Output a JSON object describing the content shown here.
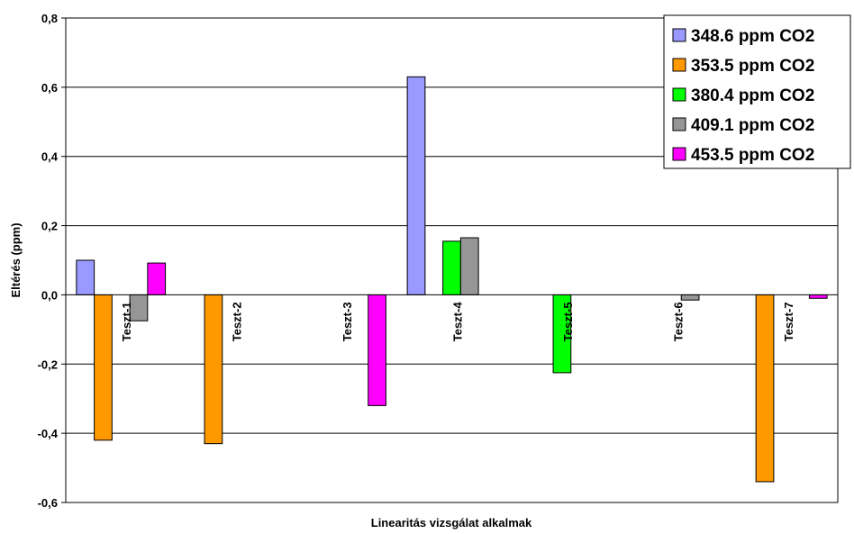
{
  "chart_data": {
    "type": "bar",
    "title": "",
    "xlabel": "Linearitás vizsgálat alkalmak",
    "ylabel": "Eltérés (ppm)",
    "ylim": [
      -0.6,
      0.8
    ],
    "yticks": [
      "0,8",
      "0,6",
      "0,4",
      "0,2",
      "0,0",
      "-0,2",
      "-0,4",
      "-0,6"
    ],
    "ytick_values": [
      0.8,
      0.6,
      0.4,
      0.2,
      0.0,
      -0.2,
      -0.4,
      -0.6
    ],
    "grid": true,
    "legend_position": "top-right",
    "categories": [
      "Teszt-1",
      "Teszt-2",
      "Teszt-3",
      "Teszt-4",
      "Teszt-5",
      "Teszt-6",
      "Teszt-7"
    ],
    "series": [
      {
        "name": "348.6 ppm CO2",
        "color": "#9999ff",
        "values": [
          0.1,
          null,
          null,
          0.63,
          null,
          null,
          null
        ]
      },
      {
        "name": "353.5 ppm CO2",
        "color": "#ff9900",
        "values": [
          -0.42,
          -0.43,
          null,
          null,
          null,
          null,
          -0.54
        ]
      },
      {
        "name": "380.4 ppm CO2",
        "color": "#00ff00",
        "values": [
          null,
          null,
          null,
          0.155,
          -0.225,
          null,
          null
        ]
      },
      {
        "name": "409.1 ppm CO2",
        "color": "#969696",
        "values": [
          -0.075,
          null,
          null,
          0.165,
          null,
          -0.015,
          null
        ]
      },
      {
        "name": "453.5 ppm CO2",
        "color": "#ff00ff",
        "values": [
          0.092,
          null,
          -0.32,
          null,
          null,
          null,
          -0.01
        ]
      }
    ]
  }
}
